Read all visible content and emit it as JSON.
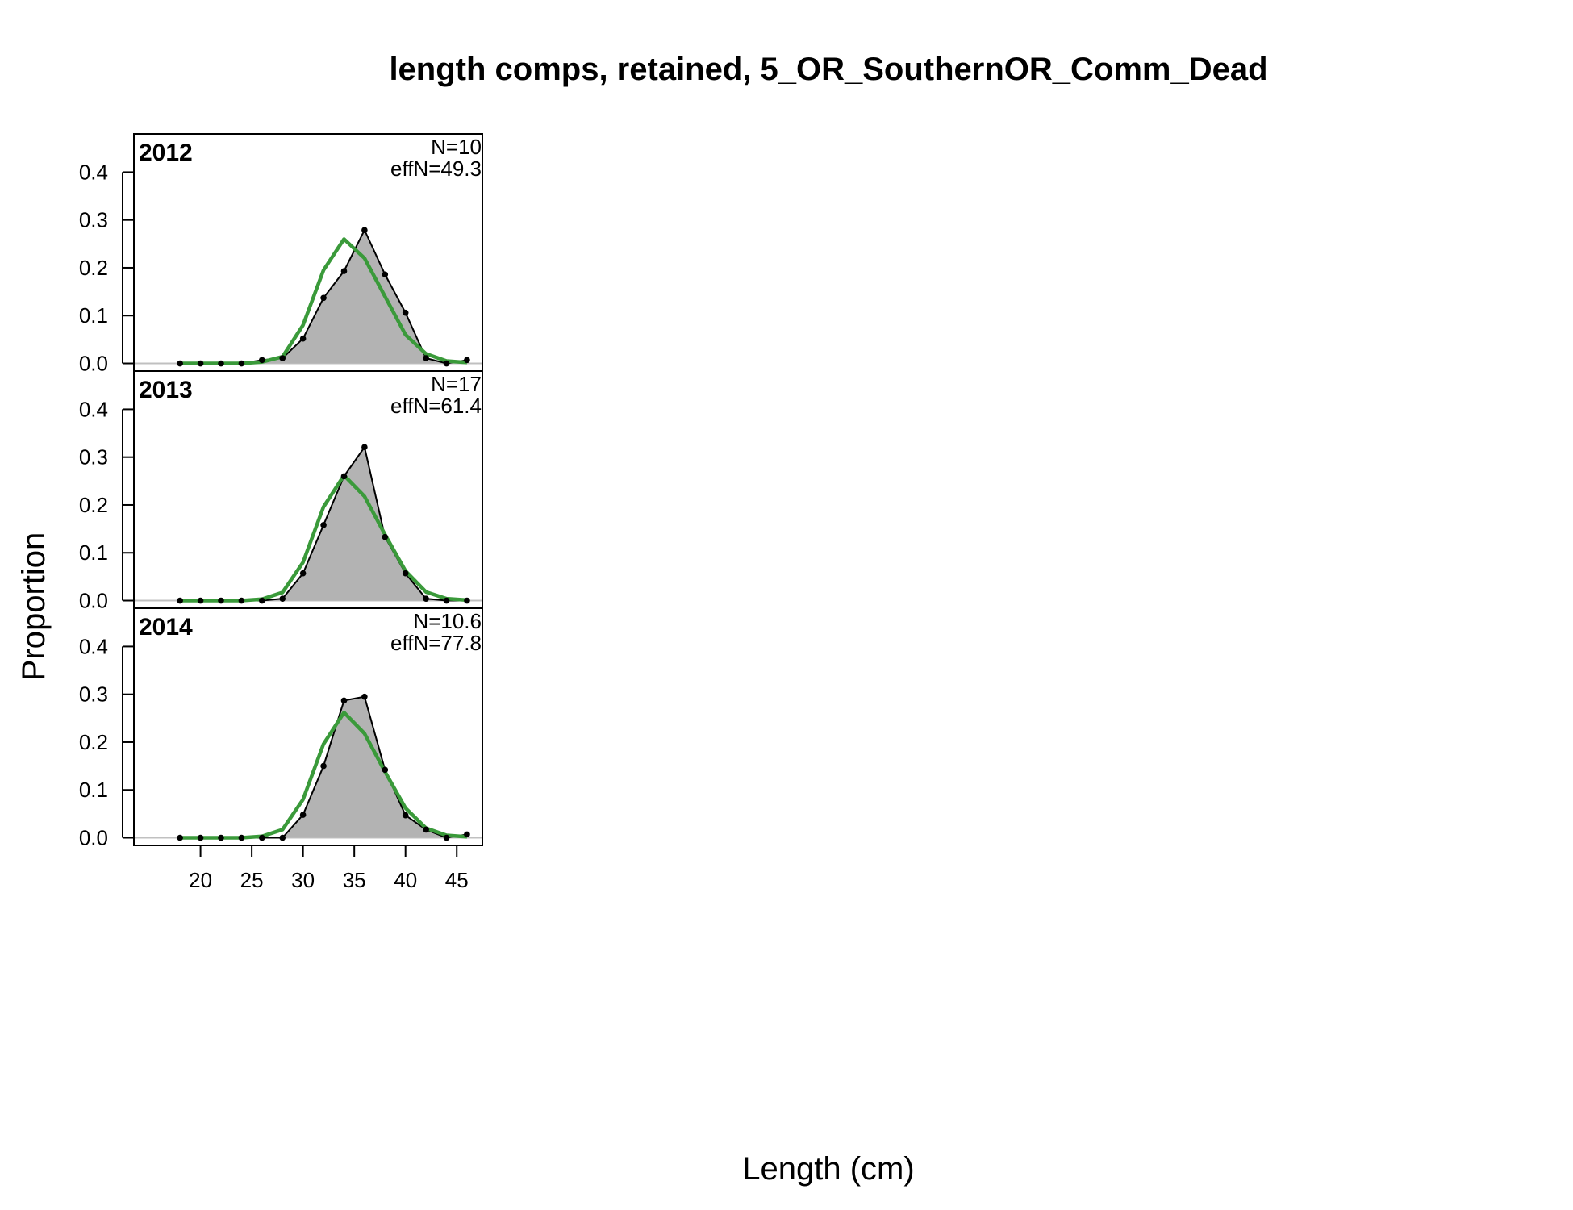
{
  "chart_data": {
    "type": "area",
    "title": "length comps, retained, 5_OR_SouthernOR_Comm_Dead",
    "xlabel": "Length (cm)",
    "ylabel": "Proportion",
    "x": [
      18,
      20,
      22,
      24,
      26,
      28,
      30,
      32,
      34,
      36,
      38,
      40,
      42,
      44,
      46
    ],
    "xlim": [
      13.5,
      47.5
    ],
    "ylim": [
      -0.016,
      0.48
    ],
    "x_ticks": [
      20,
      25,
      30,
      35,
      40,
      45
    ],
    "y_ticks": [
      0.0,
      0.1,
      0.2,
      0.3,
      0.4
    ],
    "observed_color": "#b3b3b3",
    "expected_color": "#3a9a3a",
    "panels": [
      {
        "year": "2012",
        "n_label": "N=10",
        "effn_label": "effN=49.3",
        "observed": [
          0,
          0,
          0,
          0,
          0.007,
          0.011,
          0.052,
          0.137,
          0.193,
          0.279,
          0.186,
          0.106,
          0.011,
          0,
          0.007
        ],
        "expected": [
          0,
          0,
          0,
          0,
          0.003,
          0.014,
          0.08,
          0.195,
          0.26,
          0.22,
          0.14,
          0.06,
          0.02,
          0.005,
          0.002
        ]
      },
      {
        "year": "2013",
        "n_label": "N=17",
        "effN": "",
        "effn_label": "effN=61.4",
        "observed": [
          0,
          0,
          0,
          0,
          0,
          0.004,
          0.057,
          0.158,
          0.26,
          0.321,
          0.133,
          0.057,
          0.004,
          0,
          0
        ],
        "expected": [
          0,
          0,
          0,
          0,
          0.003,
          0.017,
          0.08,
          0.196,
          0.262,
          0.218,
          0.138,
          0.062,
          0.018,
          0.004,
          0.001
        ]
      },
      {
        "year": "2014",
        "n_label": "N=10.6",
        "effn_label": "effN=77.8",
        "observed": [
          0,
          0,
          0,
          0,
          0,
          0,
          0.048,
          0.15,
          0.287,
          0.295,
          0.142,
          0.047,
          0.017,
          0,
          0.007
        ],
        "expected": [
          0,
          0,
          0,
          0,
          0.003,
          0.017,
          0.08,
          0.196,
          0.262,
          0.218,
          0.138,
          0.062,
          0.02,
          0.005,
          0.002
        ]
      }
    ]
  }
}
